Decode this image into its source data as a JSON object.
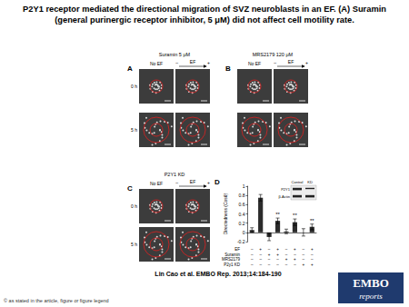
{
  "header": {
    "title": "P2Y1 receptor mediated the directional migration of SVZ neuroblasts in an EF. (A) Suramin (general purinergic receptor inhibitor, 5 μM) did not affect cell motility rate."
  },
  "panels": [
    {
      "letter": "A",
      "treatment": "Suramin 5 μM",
      "columns": [
        "No EF",
        "EF"
      ],
      "ef_poles": [
        "–",
        "+"
      ],
      "rows": [
        "0 h",
        "5 h"
      ]
    },
    {
      "letter": "B",
      "treatment": "MRS2179 120 μM",
      "columns": [
        "No EF",
        "EF"
      ],
      "ef_poles": [
        "–",
        "+"
      ]
    },
    {
      "letter": "C",
      "treatment": "P2Y1 KD",
      "columns": [
        "No EF",
        "EF"
      ],
      "ef_poles": [
        "–",
        "+"
      ],
      "rows": [
        "0 h",
        "5 h"
      ]
    }
  ],
  "panel_d": {
    "letter": "D",
    "inset_blot": {
      "columns": [
        "Control",
        "KD"
      ],
      "rows": [
        "P2Y1",
        "β-Actin"
      ]
    },
    "conditions": [
      {
        "name": "EF",
        "signs": [
          "–",
          "+",
          "–",
          "+",
          "–",
          "+",
          "–",
          "+"
        ]
      },
      {
        "name": "Suramin",
        "signs": [
          "–",
          "–",
          "+",
          "+",
          "–",
          "–",
          "–",
          "–"
        ]
      },
      {
        "name": "MRS2179",
        "signs": [
          "–",
          "–",
          "–",
          "–",
          "+",
          "+",
          "–",
          "–"
        ]
      },
      {
        "name": "P2y1 KD",
        "signs": [
          "–",
          "–",
          "–",
          "–",
          "–",
          "–",
          "+",
          "+"
        ]
      }
    ]
  },
  "chart_data": {
    "type": "bar",
    "y_label": "Directedness (Cosθ)",
    "categories": [
      null,
      null,
      null,
      null,
      null,
      null,
      null,
      null
    ],
    "values": [
      0.05,
      0.75,
      -0.1,
      0.25,
      0.02,
      0.22,
      0.0,
      0.12
    ],
    "errors": [
      0.05,
      0.07,
      0.08,
      0.06,
      0.05,
      0.07,
      0.08,
      0.06
    ],
    "significance": [
      null,
      null,
      null,
      "**",
      null,
      "**",
      null,
      "**"
    ],
    "color": "#2b2b2b",
    "ylim": [
      -0.2,
      1
    ],
    "yticks": [
      -0.2,
      0,
      0.2,
      0.4,
      0.6,
      0.8,
      1
    ],
    "grid": false
  },
  "footer": {
    "citation": "Lin Cao et al. EMBO Rep. 2013;14:184-190",
    "copyright": "© as stated in the article, figure or figure legend",
    "logo": {
      "line1": "EMBO",
      "line2": "reports"
    }
  }
}
